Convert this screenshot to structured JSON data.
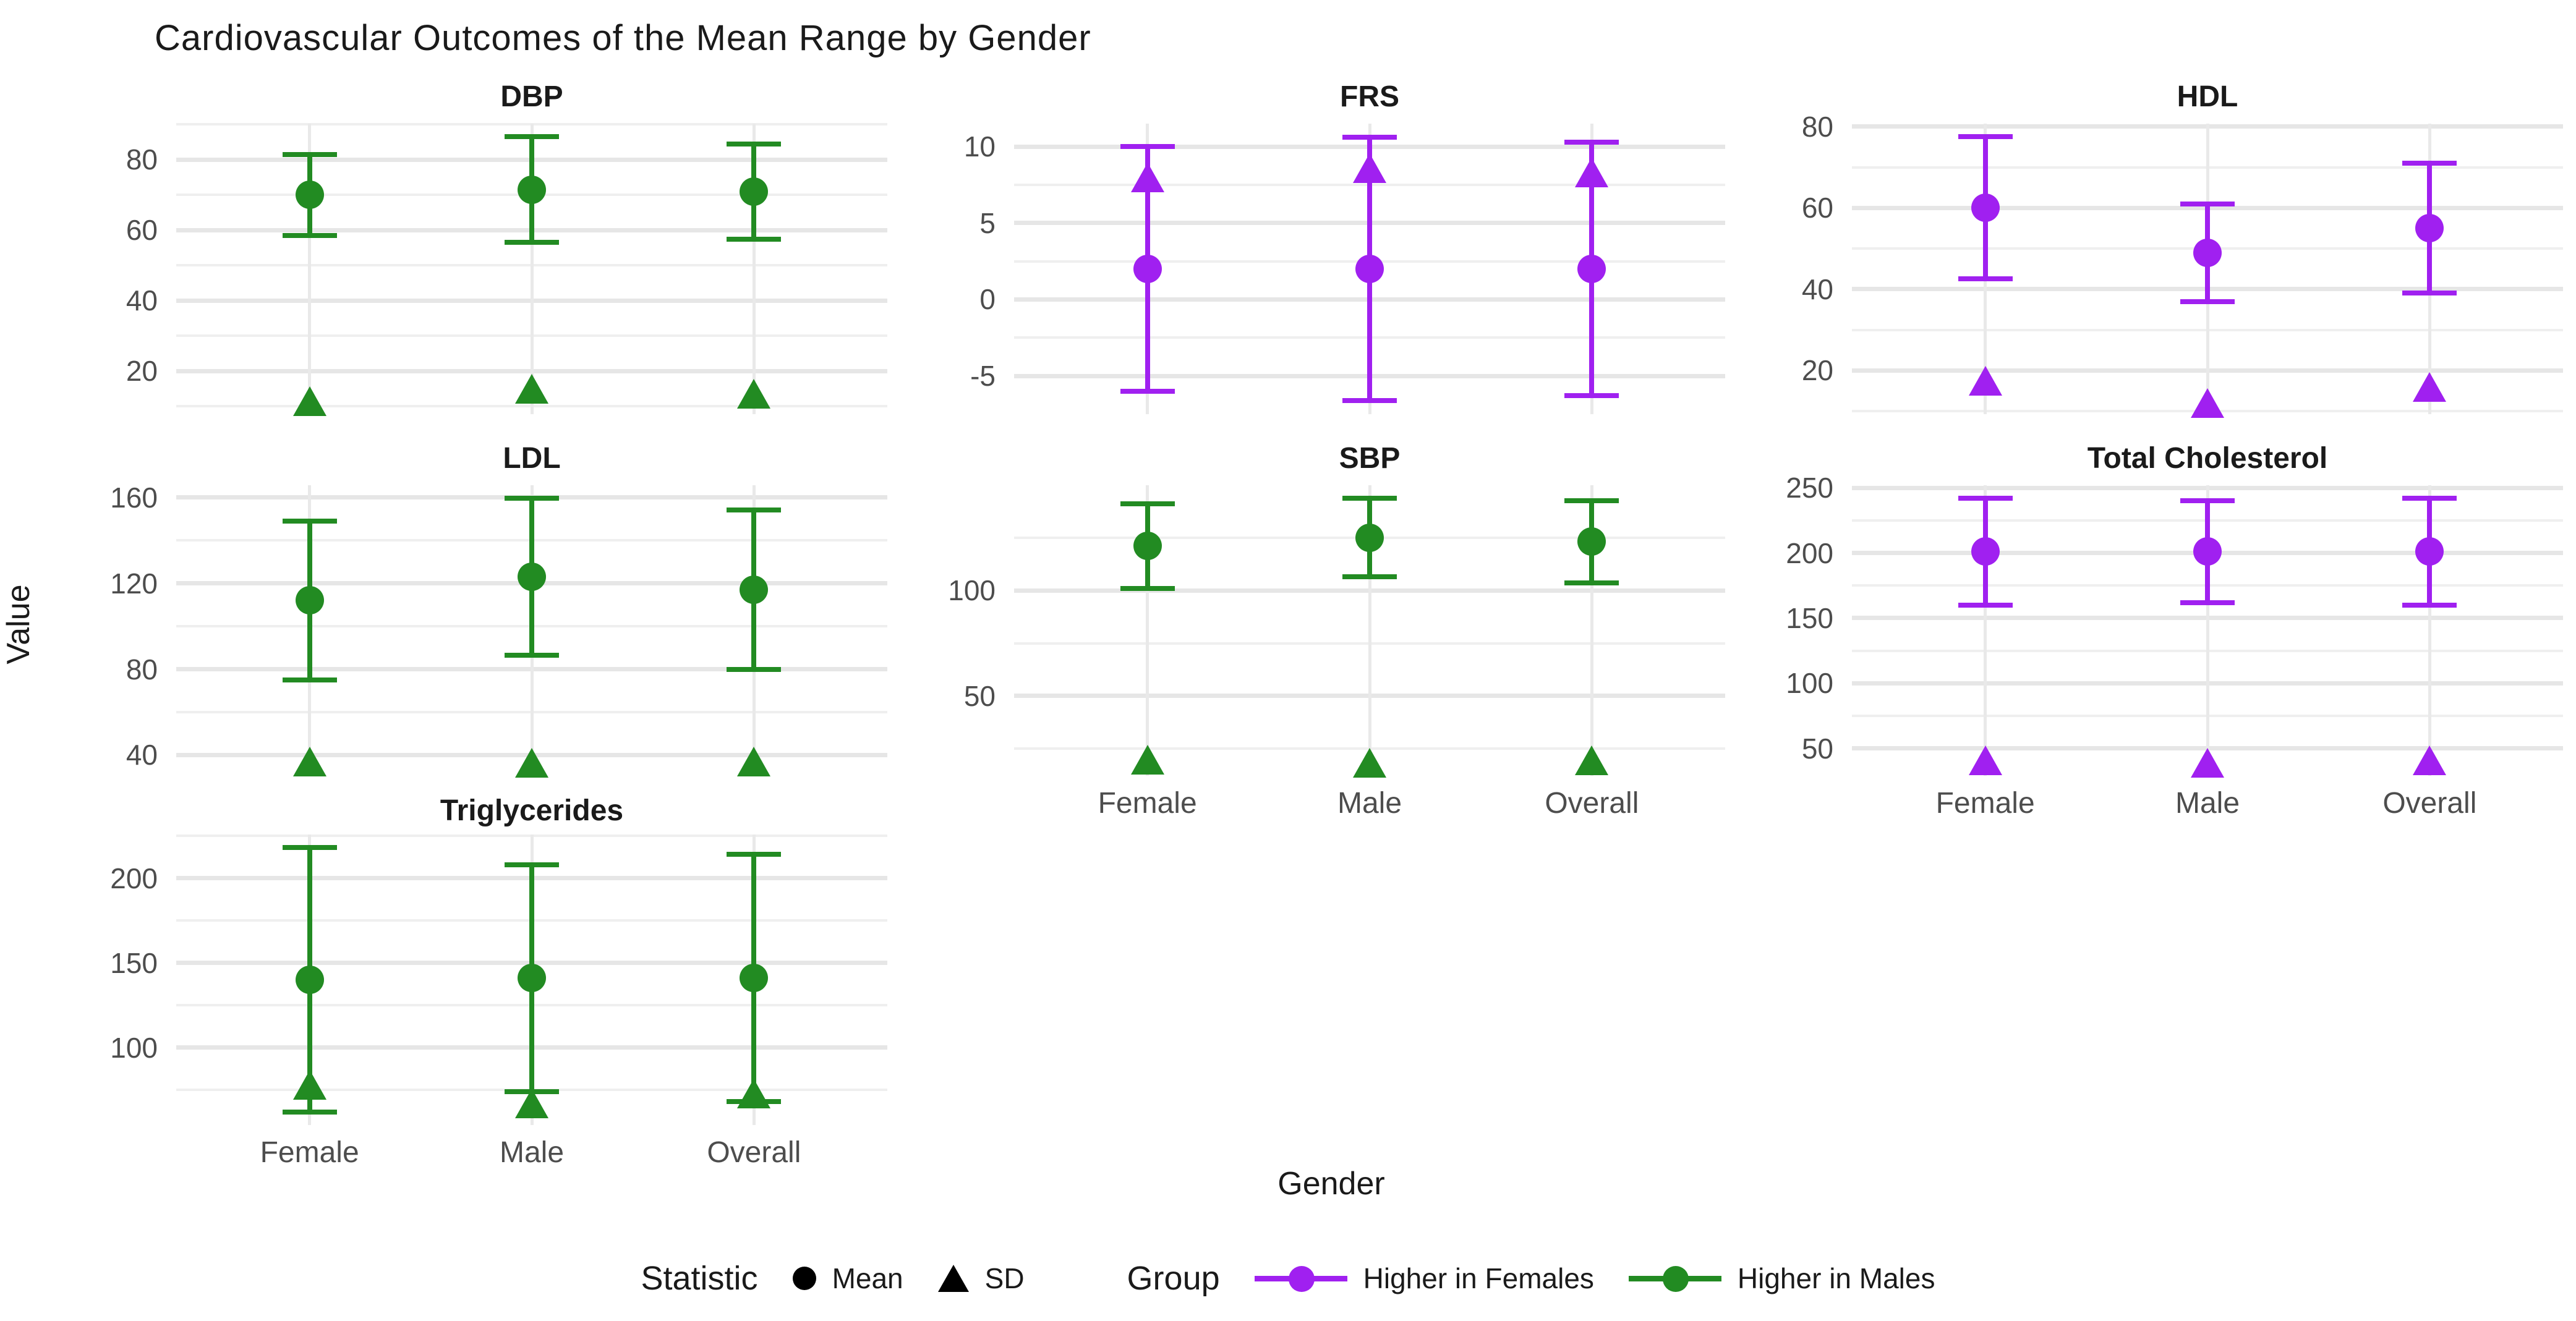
{
  "title": "Cardiovascular Outcomes of the Mean Range by Gender",
  "axis": {
    "x_label": "Gender",
    "y_label": "Value"
  },
  "legend": {
    "statistic_title": "Statistic",
    "statistic_items": [
      {
        "label": "Mean",
        "marker": "circle-icon"
      },
      {
        "label": "SD",
        "marker": "triangle-icon"
      }
    ],
    "group_title": "Group",
    "group_items": [
      {
        "label": "Higher in Females",
        "color": "#A020F0"
      },
      {
        "label": "Higher in Males",
        "color": "#228B22"
      }
    ]
  },
  "colors": {
    "higher_in_females": "#A020F0",
    "higher_in_males": "#228B22",
    "grid_major": "#e6e6e6",
    "grid_minor": "#efefef",
    "tick_text": "#4d4d4d",
    "title_text": "#1a1a1a",
    "background": "#ffffff"
  },
  "chart_data": {
    "type": "scatter",
    "subtype": "faceted-errorbar-points",
    "title": "Cardiovascular Outcomes of the Mean Range by Gender",
    "xlabel": "Gender",
    "ylabel": "Value",
    "categories": [
      "Female",
      "Male",
      "Overall"
    ],
    "statistics": [
      "Mean",
      "SD"
    ],
    "errorbar_rule": "mean plus/minus SD",
    "legend_position": "bottom",
    "grid": true,
    "panels": [
      {
        "title": "DBP",
        "group": "Higher in Males",
        "color": "#228B22",
        "row": 0,
        "col": 0,
        "ylim": [
          7.75,
          90.25
        ],
        "major_ticks": [
          20,
          40,
          60,
          80
        ],
        "minor_ticks": [
          10,
          30,
          50,
          70,
          90
        ],
        "show_x_labels": false,
        "points": [
          {
            "gender": "Female",
            "mean": 70,
            "sd": 11.5
          },
          {
            "gender": "Male",
            "mean": 71.5,
            "sd": 15
          },
          {
            "gender": "Overall",
            "mean": 71,
            "sd": 13.5
          }
        ]
      },
      {
        "title": "FRS",
        "group": "Higher in Females",
        "color": "#A020F0",
        "row": 0,
        "col": 1,
        "ylim": [
          -7.5,
          11.5
        ],
        "major_ticks": [
          -5,
          0,
          5,
          10
        ],
        "minor_ticks": [
          -2.5,
          2.5,
          7.5
        ],
        "show_x_labels": false,
        "points": [
          {
            "gender": "Female",
            "mean": 2,
            "sd": 8
          },
          {
            "gender": "Male",
            "mean": 2,
            "sd": 8.6
          },
          {
            "gender": "Overall",
            "mean": 2,
            "sd": 8.3
          }
        ]
      },
      {
        "title": "HDL",
        "group": "Higher in Females",
        "color": "#A020F0",
        "row": 0,
        "col": 2,
        "ylim": [
          9.25,
          80.75
        ],
        "major_ticks": [
          20,
          40,
          60,
          80
        ],
        "minor_ticks": [
          10,
          30,
          50,
          70
        ],
        "show_x_labels": false,
        "points": [
          {
            "gender": "Female",
            "mean": 60,
            "sd": 17.5
          },
          {
            "gender": "Male",
            "mean": 49,
            "sd": 12
          },
          {
            "gender": "Overall",
            "mean": 55,
            "sd": 16
          }
        ]
      },
      {
        "title": "LDL",
        "group": "Higher in Males",
        "color": "#228B22",
        "row": 1,
        "col": 0,
        "ylim": [
          30.35,
          165.65
        ],
        "major_ticks": [
          40,
          80,
          120,
          160
        ],
        "minor_ticks": [
          60,
          100,
          140
        ],
        "show_x_labels": false,
        "points": [
          {
            "gender": "Female",
            "mean": 112,
            "sd": 37
          },
          {
            "gender": "Male",
            "mean": 123,
            "sd": 36.5
          },
          {
            "gender": "Overall",
            "mean": 117,
            "sd": 37
          }
        ]
      },
      {
        "title": "SBP",
        "group": "Higher in Males",
        "color": "#228B22",
        "row": 1,
        "col": 1,
        "ylim": [
          12.25,
          149.75
        ],
        "major_ticks": [
          50,
          100
        ],
        "minor_ticks": [
          25,
          75,
          125
        ],
        "show_x_labels": true,
        "points": [
          {
            "gender": "Female",
            "mean": 121,
            "sd": 20
          },
          {
            "gender": "Male",
            "mean": 125,
            "sd": 18.5
          },
          {
            "gender": "Overall",
            "mean": 123,
            "sd": 19.5
          }
        ]
      },
      {
        "title": "Total Cholesterol",
        "group": "Higher in Females",
        "color": "#A020F0",
        "row": 1,
        "col": 2,
        "ylim": [
          29,
          252
        ],
        "major_ticks": [
          50,
          100,
          150,
          200,
          250
        ],
        "minor_ticks": [
          75,
          125,
          175,
          225
        ],
        "show_x_labels": true,
        "points": [
          {
            "gender": "Female",
            "mean": 201,
            "sd": 41
          },
          {
            "gender": "Male",
            "mean": 201,
            "sd": 39
          },
          {
            "gender": "Overall",
            "mean": 201,
            "sd": 41
          }
        ]
      },
      {
        "title": "Triglycerides",
        "group": "Higher in Males",
        "color": "#228B22",
        "row": 2,
        "col": 0,
        "ylim": [
          54.2,
          225.8
        ],
        "major_ticks": [
          100,
          150,
          200
        ],
        "minor_ticks": [
          75,
          125,
          175,
          225
        ],
        "show_x_labels": true,
        "points": [
          {
            "gender": "Female",
            "mean": 140,
            "sd": 78
          },
          {
            "gender": "Male",
            "mean": 141,
            "sd": 67
          },
          {
            "gender": "Overall",
            "mean": 141,
            "sd": 73
          }
        ]
      }
    ]
  }
}
